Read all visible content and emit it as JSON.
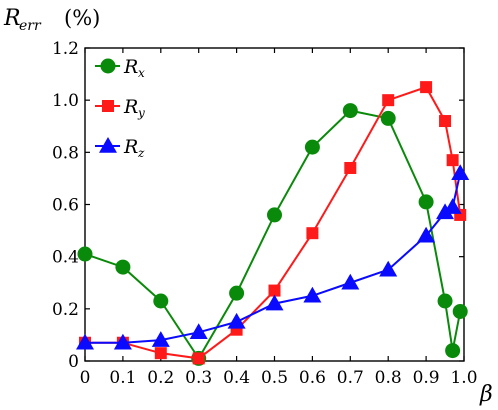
{
  "chart_data": {
    "type": "line",
    "ylabel": {
      "main": "R",
      "sub": "err",
      "unit": "(%)"
    },
    "xlabel": "β",
    "xlim": [
      0,
      1.0
    ],
    "ylim": [
      0,
      1.2
    ],
    "xticks": [
      0,
      0.1,
      0.2,
      0.3,
      0.4,
      0.5,
      0.6,
      0.7,
      0.8,
      0.9,
      1.0
    ],
    "xtick_labels": [
      "0",
      "0.1",
      "0.2",
      "0.3",
      "0.4",
      "0.5",
      "0.6",
      "0.7",
      "0.8",
      "0.9",
      "1.0"
    ],
    "yticks": [
      0,
      0.2,
      0.4,
      0.6,
      0.8,
      1.0,
      1.2
    ],
    "ytick_labels": [
      "0",
      "0.2",
      "0.4",
      "0.6",
      "0.8",
      "1.0",
      "1.2"
    ],
    "grid": false,
    "legend_position": "top-left",
    "series": [
      {
        "name": "R",
        "sub": "x",
        "color": "#0a8a0a",
        "marker": "circle",
        "x": [
          0,
          0.1,
          0.2,
          0.3,
          0.4,
          0.5,
          0.6,
          0.7,
          0.8,
          0.9,
          0.95,
          0.97,
          0.99
        ],
        "y": [
          0.41,
          0.36,
          0.23,
          0.01,
          0.26,
          0.56,
          0.82,
          0.96,
          0.93,
          0.61,
          0.23,
          0.04,
          0.19
        ]
      },
      {
        "name": "R",
        "sub": "y",
        "color": "#ff1a1a",
        "marker": "square",
        "x": [
          0,
          0.1,
          0.2,
          0.3,
          0.4,
          0.5,
          0.6,
          0.7,
          0.8,
          0.9,
          0.95,
          0.97,
          0.99
        ],
        "y": [
          0.07,
          0.07,
          0.03,
          0.01,
          0.12,
          0.27,
          0.49,
          0.74,
          1.0,
          1.05,
          0.92,
          0.77,
          0.56
        ]
      },
      {
        "name": "R",
        "sub": "z",
        "color": "#0a0aff",
        "marker": "triangle",
        "x": [
          0,
          0.1,
          0.2,
          0.3,
          0.4,
          0.5,
          0.6,
          0.7,
          0.8,
          0.9,
          0.95,
          0.97,
          0.99
        ],
        "y": [
          0.07,
          0.07,
          0.08,
          0.11,
          0.15,
          0.22,
          0.25,
          0.3,
          0.35,
          0.48,
          0.57,
          0.59,
          0.72
        ]
      }
    ]
  }
}
